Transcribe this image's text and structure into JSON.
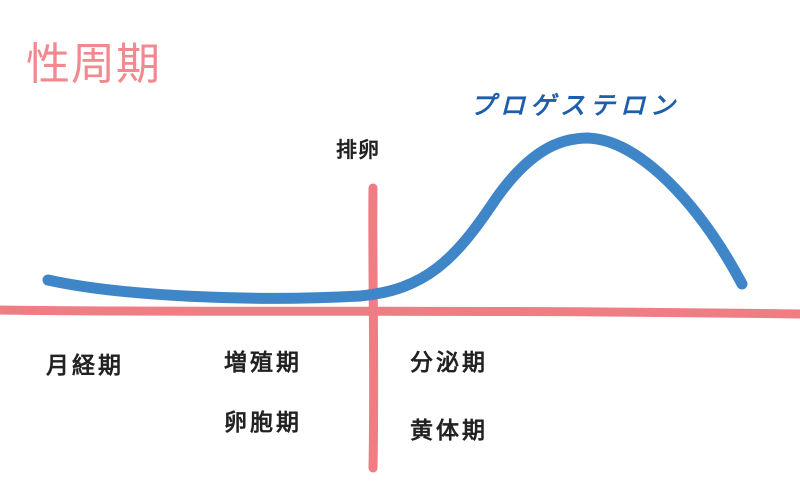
{
  "title": "性周期",
  "curve_label": "プロゲステロン",
  "ovulation_label": "排卵",
  "phases": {
    "menstrual": "月経期",
    "proliferative": "増殖期",
    "follicular": "卵胞期",
    "secretory": "分泌期",
    "luteal": "黄体期"
  },
  "colors": {
    "title": "#ef8a8f",
    "axis_lines": "#ee7d84",
    "curve": "#3f86c8",
    "curve_label": "#1f5ea8",
    "text": "#222222"
  }
}
